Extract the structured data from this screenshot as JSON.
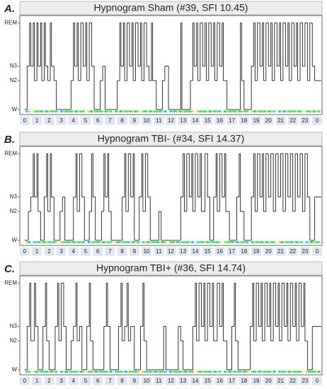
{
  "chart_data": [
    {
      "type": "hypnogram",
      "panel_label": "A.",
      "title": "Hypnogram Sham (#39, SFI 10.45)",
      "x": [
        0,
        0.2,
        0.4,
        0.5,
        0.7,
        0.8,
        1.0,
        1.1,
        1.3,
        1.4,
        1.6,
        1.7,
        1.9,
        2.1,
        2.2,
        2.4,
        2.6,
        3.8,
        4.0,
        4.1,
        4.3,
        4.4,
        4.6,
        4.8,
        5.0,
        5.1,
        5.3,
        5.5,
        5.7,
        6.2,
        6.4,
        6.6,
        7.6,
        7.8,
        7.9,
        8.1,
        8.2,
        8.4,
        8.6,
        8.8,
        8.9,
        9.1,
        9.3,
        9.5,
        9.6,
        9.8,
        10.0,
        10.2,
        10.4,
        10.5,
        10.8,
        11.3,
        11.5,
        11.8,
        12.8,
        12.9,
        13.6,
        13.8,
        13.9,
        14.1,
        14.2,
        14.4,
        14.6,
        14.8,
        14.9,
        15.1,
        15.3,
        15.5,
        15.6,
        15.8,
        16.0,
        16.2,
        16.3,
        16.6,
        17.7,
        17.8,
        18.0,
        18.6,
        18.8,
        18.9,
        19.1,
        19.3,
        19.5,
        19.6,
        19.8,
        20.0,
        20.2,
        20.3,
        20.5,
        20.7,
        20.9,
        21.0,
        21.2,
        21.4,
        21.6,
        21.7,
        21.9,
        22.1,
        22.3,
        22.4,
        22.6,
        22.8,
        23.0,
        23.2,
        23.4,
        23.6,
        23.8
      ],
      "values": [
        0,
        3,
        6,
        3,
        6,
        2,
        6,
        3,
        6,
        2,
        6,
        3,
        2,
        6,
        3,
        2,
        0,
        2,
        6,
        3,
        6,
        2,
        6,
        3,
        6,
        2,
        6,
        3,
        0,
        2,
        3,
        0,
        2,
        6,
        3,
        6,
        2,
        6,
        3,
        6,
        2,
        6,
        3,
        6,
        2,
        6,
        3,
        2,
        6,
        2,
        0,
        2,
        3,
        0,
        6,
        0,
        2,
        6,
        3,
        6,
        2,
        6,
        3,
        6,
        2,
        6,
        3,
        6,
        2,
        6,
        3,
        6,
        2,
        0,
        6,
        2,
        0,
        3,
        6,
        2,
        6,
        3,
        6,
        2,
        6,
        3,
        6,
        2,
        6,
        3,
        6,
        2,
        6,
        3,
        6,
        2,
        6,
        3,
        6,
        2,
        6,
        3,
        6,
        2,
        6,
        3,
        2
      ],
      "color": "#000000",
      "xlim": [
        -0.4,
        24.4
      ],
      "xticks": [
        {
          "value": 0,
          "label": "0"
        },
        1,
        2,
        3,
        4,
        5,
        6,
        7,
        8,
        9,
        10,
        11,
        12,
        13,
        14,
        15,
        16,
        17,
        18,
        19,
        20,
        21,
        22,
        23,
        {
          "value": 24,
          "label": "0"
        }
      ],
      "ylim": [
        -0.35,
        6.5
      ],
      "yticks": [
        {
          "value": 0,
          "label": "W"
        },
        {
          "value": 2,
          "label": "N2"
        },
        {
          "value": 3,
          "label": "N3"
        },
        {
          "value": 6,
          "label": "REM"
        }
      ]
    },
    {
      "type": "hypnogram",
      "panel_label": "B.",
      "title": "Hypnogram TBI- (#34, SFI 14.37)",
      "x": [
        0,
        0.3,
        0.5,
        0.7,
        0.8,
        1.0,
        1.1,
        1.3,
        1.6,
        1.8,
        1.9,
        2.1,
        2.2,
        2.4,
        2.9,
        3.1,
        3.3,
        4.0,
        4.2,
        4.3,
        4.5,
        4.7,
        4.9,
        5.3,
        5.5,
        5.6,
        5.8,
        6.3,
        6.5,
        6.6,
        6.8,
        6.9,
        7.1,
        8.0,
        8.2,
        8.3,
        8.5,
        8.7,
        8.9,
        9.0,
        9.4,
        9.6,
        9.7,
        9.9,
        10.1,
        10.3,
        11.0,
        11.2,
        12.8,
        13.0,
        13.1,
        13.3,
        13.5,
        13.7,
        13.8,
        14.0,
        14.2,
        14.4,
        14.5,
        14.8,
        15.0,
        15.2,
        15.5,
        15.7,
        15.8,
        16.0,
        16.2,
        16.4,
        16.5,
        16.8,
        17.4,
        17.6,
        17.7,
        18.0,
        18.6,
        18.8,
        18.9,
        19.1,
        19.3,
        19.5,
        19.6,
        19.8,
        20.0,
        20.2,
        20.4,
        20.6,
        20.8,
        21.0,
        21.2,
        21.4,
        21.6,
        21.8,
        22.0,
        22.2,
        22.4,
        22.6,
        22.8,
        23.0,
        23.2,
        23.4,
        23.8
      ],
      "values": [
        0,
        2,
        3,
        6,
        3,
        6,
        2,
        0,
        3,
        6,
        2,
        6,
        3,
        0,
        2,
        3,
        0,
        3,
        6,
        2,
        6,
        3,
        0,
        2,
        6,
        3,
        0,
        2,
        6,
        3,
        6,
        2,
        0,
        3,
        6,
        2,
        6,
        3,
        6,
        0,
        3,
        6,
        2,
        6,
        3,
        0,
        2,
        0,
        3,
        6,
        2,
        6,
        3,
        6,
        2,
        6,
        3,
        6,
        2,
        6,
        3,
        0,
        3,
        6,
        2,
        6,
        3,
        6,
        2,
        0,
        3,
        6,
        2,
        0,
        3,
        6,
        2,
        6,
        3,
        6,
        2,
        6,
        3,
        6,
        2,
        6,
        3,
        6,
        2,
        6,
        3,
        6,
        2,
        6,
        3,
        6,
        2,
        6,
        3,
        0,
        3
      ],
      "color": "#000000",
      "xlim": [
        -0.4,
        24.4
      ],
      "xticks": [
        {
          "value": 0,
          "label": "0"
        },
        1,
        2,
        3,
        4,
        5,
        6,
        7,
        8,
        9,
        10,
        11,
        12,
        13,
        14,
        15,
        16,
        17,
        18,
        19,
        20,
        21,
        22,
        23,
        {
          "value": 24,
          "label": "0"
        }
      ],
      "ylim": [
        -0.35,
        6.5
      ],
      "yticks": [
        {
          "value": 0,
          "label": "W"
        },
        {
          "value": 2,
          "label": "N2"
        },
        {
          "value": 3,
          "label": "N3"
        },
        {
          "value": 6,
          "label": "REM"
        }
      ]
    },
    {
      "type": "hypnogram",
      "panel_label": "C.",
      "title": "Hypnogram TBI+ (#36, SFI 14.74)",
      "x": [
        0,
        0.2,
        0.4,
        0.5,
        0.8,
        0.9,
        1.1,
        1.5,
        1.7,
        1.8,
        2.0,
        2.5,
        2.7,
        2.8,
        3.0,
        3.2,
        3.4,
        3.8,
        4.0,
        4.2,
        4.3,
        4.5,
        4.7,
        5.1,
        5.3,
        5.4,
        5.6,
        6.5,
        6.7,
        6.8,
        7.0,
        7.7,
        7.9,
        8.0,
        8.2,
        8.4,
        8.5,
        8.7,
        9.0,
        9.5,
        9.7,
        9.8,
        10.0,
        11.4,
        11.6,
        12.6,
        12.8,
        13.0,
        13.8,
        14.0,
        14.1,
        14.3,
        14.5,
        14.7,
        14.8,
        15.0,
        15.2,
        15.4,
        15.5,
        15.8,
        16.0,
        16.2,
        16.3,
        16.6,
        17.0,
        17.2,
        17.3,
        17.5,
        18.5,
        18.7,
        18.8,
        19.0,
        19.2,
        19.4,
        19.5,
        19.7,
        19.9,
        20.1,
        20.2,
        20.4,
        20.6,
        20.8,
        20.9,
        21.1,
        21.3,
        21.5,
        21.6,
        21.8,
        22.0,
        22.2,
        22.3,
        22.5,
        22.7,
        22.9,
        23.0,
        23.2,
        23.6
      ],
      "values": [
        0,
        3,
        6,
        2,
        6,
        3,
        0,
        3,
        6,
        2,
        0,
        3,
        6,
        2,
        6,
        3,
        0,
        2,
        3,
        6,
        2,
        3,
        0,
        3,
        6,
        2,
        0,
        3,
        6,
        3,
        0,
        3,
        6,
        2,
        3,
        6,
        2,
        3,
        0,
        3,
        6,
        2,
        0,
        3,
        0,
        3,
        2,
        0,
        3,
        6,
        2,
        6,
        3,
        6,
        2,
        6,
        3,
        6,
        2,
        6,
        3,
        6,
        2,
        0,
        3,
        6,
        2,
        0,
        3,
        6,
        2,
        6,
        3,
        6,
        2,
        6,
        3,
        6,
        2,
        6,
        3,
        6,
        2,
        6,
        3,
        6,
        2,
        6,
        3,
        6,
        2,
        6,
        3,
        6,
        2,
        0,
        3
      ],
      "color": "#000000",
      "xlim": [
        -0.4,
        24.4
      ],
      "xticks": [
        {
          "value": 0,
          "label": "0"
        },
        1,
        2,
        3,
        4,
        5,
        6,
        7,
        8,
        9,
        10,
        11,
        12,
        13,
        14,
        15,
        16,
        17,
        18,
        19,
        20,
        21,
        22,
        23,
        {
          "value": 24,
          "label": "0"
        }
      ],
      "ylim": [
        -0.35,
        6.5
      ],
      "yticks": [
        {
          "value": 0,
          "label": "W"
        },
        {
          "value": 2,
          "label": "N2"
        },
        {
          "value": 3,
          "label": "N3"
        },
        {
          "value": 6,
          "label": "REM"
        }
      ]
    }
  ]
}
